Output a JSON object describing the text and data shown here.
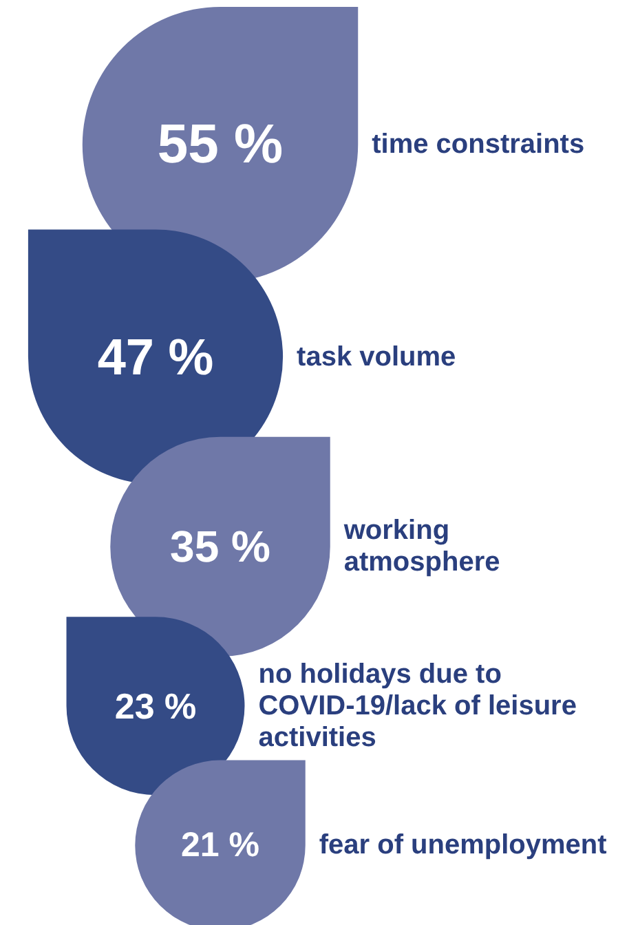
{
  "chart_data": {
    "type": "other",
    "categories": [
      "time constraints",
      "task volume",
      "working atmosphere",
      "no holidays due to COVID-19/lack of leisure activities",
      "fear of unemployment"
    ],
    "values": [
      55,
      47,
      35,
      23,
      21
    ],
    "value_labels": [
      "55 %",
      "47 %",
      "35 %",
      "23 %",
      "21 %"
    ],
    "colors": [
      "#6f78a8",
      "#344b86",
      "#6f78a8",
      "#344b86",
      "#6f78a8"
    ]
  }
}
